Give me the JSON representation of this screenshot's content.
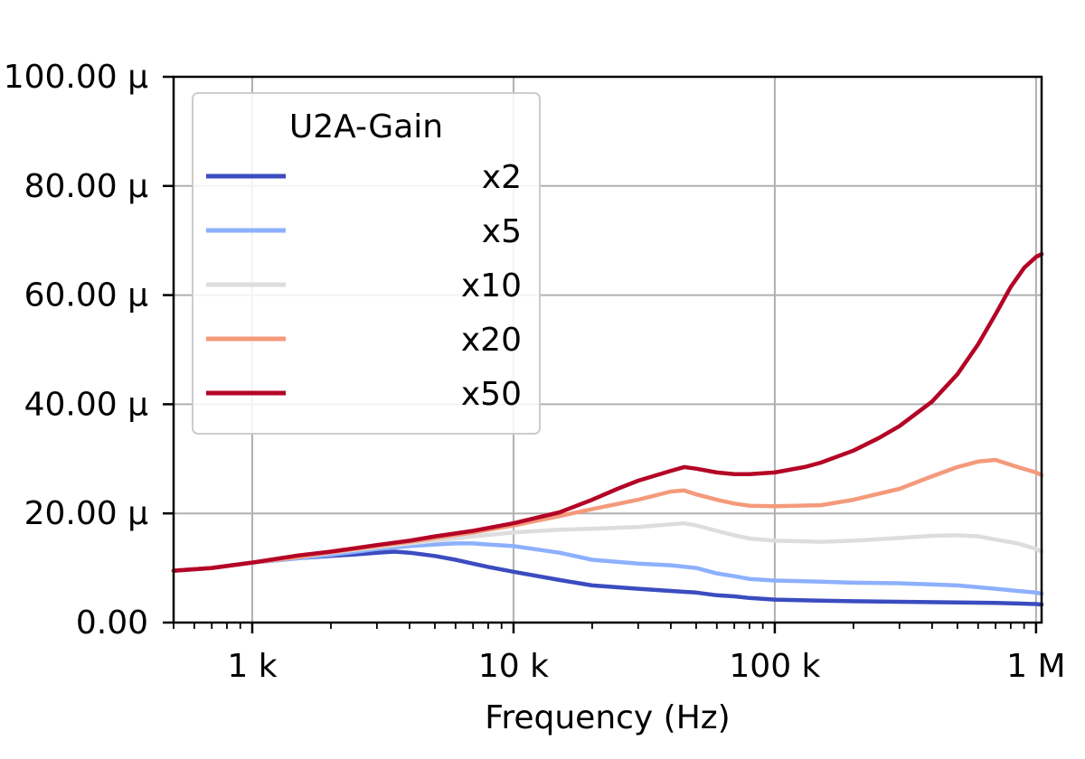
{
  "chart_data": {
    "type": "line",
    "xlabel": "Frequency (Hz)",
    "ylabel": "",
    "x_scale": "log",
    "xlim": [
      500,
      1050000
    ],
    "ylim": [
      0,
      0.0001
    ],
    "grid": true,
    "legend_title": "U2A-Gain",
    "legend_position": "top-left",
    "x_ticks": [
      {
        "value": 1000,
        "label": "1 k"
      },
      {
        "value": 10000,
        "label": "10 k"
      },
      {
        "value": 100000,
        "label": "100 k"
      },
      {
        "value": 1000000,
        "label": "1 M"
      }
    ],
    "y_ticks": [
      {
        "value": 0,
        "label": "0.00"
      },
      {
        "value": 2e-05,
        "label": "20.00 μ"
      },
      {
        "value": 4e-05,
        "label": "40.00 μ"
      },
      {
        "value": 6e-05,
        "label": "60.00 μ"
      },
      {
        "value": 8e-05,
        "label": "80.00 μ"
      },
      {
        "value": 0.0001,
        "label": "100.00 μ"
      }
    ],
    "series": [
      {
        "name": "x2",
        "color": "#3b4cc0",
        "x": [
          500,
          700,
          1000,
          1500,
          2000,
          2500,
          3000,
          3500,
          4000,
          5000,
          6000,
          7000,
          8000,
          10000,
          15000,
          20000,
          30000,
          40000,
          50000,
          60000,
          70000,
          80000,
          100000,
          150000,
          200000,
          300000,
          500000,
          700000,
          850000,
          1000000,
          1050000
        ],
        "y": [
          9.5e-06,
          1e-05,
          1.1e-05,
          1.18e-05,
          1.22e-05,
          1.25e-05,
          1.28e-05,
          1.3e-05,
          1.28e-05,
          1.22e-05,
          1.15e-05,
          1.08e-05,
          1.02e-05,
          9.3e-06,
          7.8e-06,
          6.8e-06,
          6.2e-06,
          5.8e-06,
          5.5e-06,
          5e-06,
          4.8e-06,
          4.5e-06,
          4.2e-06,
          4e-06,
          3.9e-06,
          3.8e-06,
          3.7e-06,
          3.6e-06,
          3.5e-06,
          3.4e-06,
          3.3e-06
        ]
      },
      {
        "name": "x5",
        "color": "#8db0fe",
        "x": [
          500,
          700,
          1000,
          1500,
          2000,
          2500,
          3000,
          4000,
          5000,
          6000,
          7000,
          8000,
          10000,
          15000,
          20000,
          30000,
          40000,
          50000,
          60000,
          70000,
          80000,
          100000,
          150000,
          200000,
          300000,
          500000,
          700000,
          850000,
          1000000,
          1050000
        ],
        "y": [
          9.5e-06,
          1e-05,
          1.1e-05,
          1.18e-05,
          1.24e-05,
          1.3e-05,
          1.35e-05,
          1.4e-05,
          1.43e-05,
          1.45e-05,
          1.45e-05,
          1.43e-05,
          1.4e-05,
          1.28e-05,
          1.15e-05,
          1.08e-05,
          1.05e-05,
          1e-05,
          9e-06,
          8.5e-06,
          8e-06,
          7.7e-06,
          7.5e-06,
          7.3e-06,
          7.2e-06,
          6.8e-06,
          6.2e-06,
          5.8e-06,
          5.5e-06,
          5.3e-06
        ]
      },
      {
        "name": "x10",
        "color": "#dddddd",
        "x": [
          500,
          700,
          1000,
          1500,
          2000,
          3000,
          4000,
          5000,
          7000,
          10000,
          15000,
          20000,
          30000,
          40000,
          45000,
          50000,
          60000,
          70000,
          80000,
          100000,
          150000,
          200000,
          300000,
          400000,
          500000,
          600000,
          700000,
          850000,
          1000000,
          1050000
        ],
        "y": [
          9.5e-06,
          1e-05,
          1.1e-05,
          1.2e-05,
          1.28e-05,
          1.38e-05,
          1.45e-05,
          1.5e-05,
          1.58e-05,
          1.65e-05,
          1.7e-05,
          1.72e-05,
          1.75e-05,
          1.8e-05,
          1.82e-05,
          1.78e-05,
          1.68e-05,
          1.6e-05,
          1.54e-05,
          1.5e-05,
          1.48e-05,
          1.5e-05,
          1.55e-05,
          1.59e-05,
          1.6e-05,
          1.58e-05,
          1.52e-05,
          1.45e-05,
          1.35e-05,
          1.3e-05
        ]
      },
      {
        "name": "x20",
        "color": "#f49a7b",
        "x": [
          500,
          700,
          1000,
          1500,
          2000,
          3000,
          4000,
          5000,
          7000,
          10000,
          15000,
          20000,
          30000,
          40000,
          45000,
          50000,
          60000,
          70000,
          80000,
          100000,
          150000,
          200000,
          300000,
          400000,
          500000,
          600000,
          700000,
          850000,
          1000000,
          1050000
        ],
        "y": [
          9.5e-06,
          1e-05,
          1.1e-05,
          1.2e-05,
          1.29e-05,
          1.4e-05,
          1.48e-05,
          1.55e-05,
          1.65e-05,
          1.78e-05,
          1.95e-05,
          2.08e-05,
          2.25e-05,
          2.4e-05,
          2.42e-05,
          2.35e-05,
          2.25e-05,
          2.18e-05,
          2.14e-05,
          2.13e-05,
          2.15e-05,
          2.25e-05,
          2.45e-05,
          2.68e-05,
          2.85e-05,
          2.95e-05,
          2.98e-05,
          2.85e-05,
          2.75e-05,
          2.7e-05
        ]
      },
      {
        "name": "x50",
        "color": "#b40426",
        "x": [
          500,
          700,
          1000,
          1500,
          2000,
          3000,
          4000,
          5000,
          7000,
          10000,
          15000,
          20000,
          25000,
          30000,
          40000,
          45000,
          50000,
          60000,
          70000,
          80000,
          100000,
          130000,
          150000,
          200000,
          250000,
          300000,
          400000,
          500000,
          600000,
          700000,
          800000,
          900000,
          1000000,
          1050000
        ],
        "y": [
          9.5e-06,
          1e-05,
          1.1e-05,
          1.23e-05,
          1.3e-05,
          1.42e-05,
          1.5e-05,
          1.58e-05,
          1.68e-05,
          1.82e-05,
          2.02e-05,
          2.25e-05,
          2.45e-05,
          2.6e-05,
          2.78e-05,
          2.85e-05,
          2.82e-05,
          2.75e-05,
          2.72e-05,
          2.72e-05,
          2.75e-05,
          2.85e-05,
          2.93e-05,
          3.15e-05,
          3.38e-05,
          3.6e-05,
          4.05e-05,
          4.55e-05,
          5.1e-05,
          5.65e-05,
          6.15e-05,
          6.5e-05,
          6.7e-05,
          6.75e-05
        ]
      }
    ]
  }
}
